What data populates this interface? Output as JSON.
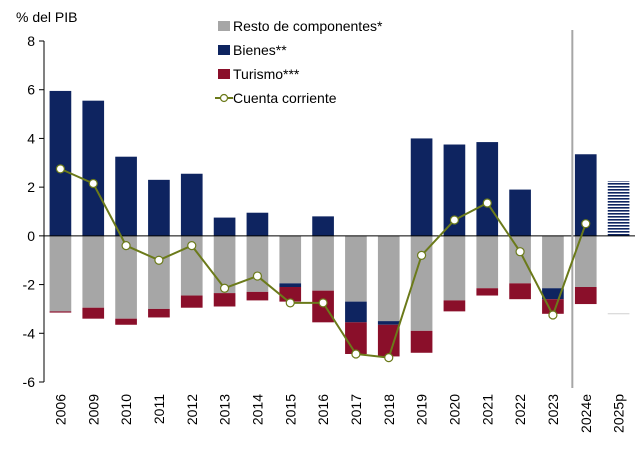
{
  "chart_data": {
    "type": "bar",
    "stacked": true,
    "ylabel": "% del PIB",
    "ylim": [
      -6,
      8
    ],
    "yticks": [
      -6,
      -4,
      -2,
      0,
      2,
      4,
      6,
      8
    ],
    "categories": [
      "2006",
      "2009",
      "2010",
      "2011",
      "2012",
      "2013",
      "2014",
      "2015",
      "2016",
      "2017",
      "2018",
      "2019",
      "2020",
      "2021",
      "2022",
      "2023",
      "2024e",
      "2025p"
    ],
    "vertical_separator_after": "2023",
    "series": [
      {
        "name": "Resto de componentes*",
        "kind": "bar",
        "color": "#a6a6a6",
        "values": [
          -3.1,
          -2.95,
          -3.4,
          -3.0,
          -2.45,
          -2.35,
          -2.3,
          -1.95,
          -2.25,
          -2.7,
          -3.5,
          -3.9,
          -2.65,
          -2.15,
          -1.95,
          -2.15,
          -2.1,
          -3.2
        ]
      },
      {
        "name": "Bienes**",
        "kind": "bar",
        "color": "#0e2460",
        "values": [
          5.95,
          5.55,
          3.25,
          2.3,
          2.55,
          0.75,
          0.95,
          -0.15,
          0.8,
          -0.85,
          -0.15,
          4.0,
          3.75,
          3.85,
          1.9,
          -0.45,
          3.35,
          2.25
        ]
      },
      {
        "name": "Turismo***",
        "kind": "bar",
        "color": "#8a0f2a",
        "values": [
          -0.05,
          -0.45,
          -0.25,
          -0.35,
          -0.5,
          -0.55,
          -0.35,
          -0.6,
          -1.3,
          -1.3,
          -1.3,
          -0.9,
          -0.45,
          -0.3,
          -0.65,
          -0.6,
          -0.7,
          0
        ]
      },
      {
        "name": "Cuenta corriente",
        "kind": "line",
        "color": "#6b7a1a",
        "values": [
          2.75,
          2.15,
          -0.4,
          -1.0,
          -0.4,
          -2.15,
          -1.65,
          -2.75,
          -2.75,
          -4.85,
          -5.0,
          -0.8,
          0.65,
          1.35,
          -0.65,
          -3.25,
          0.5,
          null
        ]
      }
    ],
    "hatched_categories": [
      "2025p"
    ]
  }
}
